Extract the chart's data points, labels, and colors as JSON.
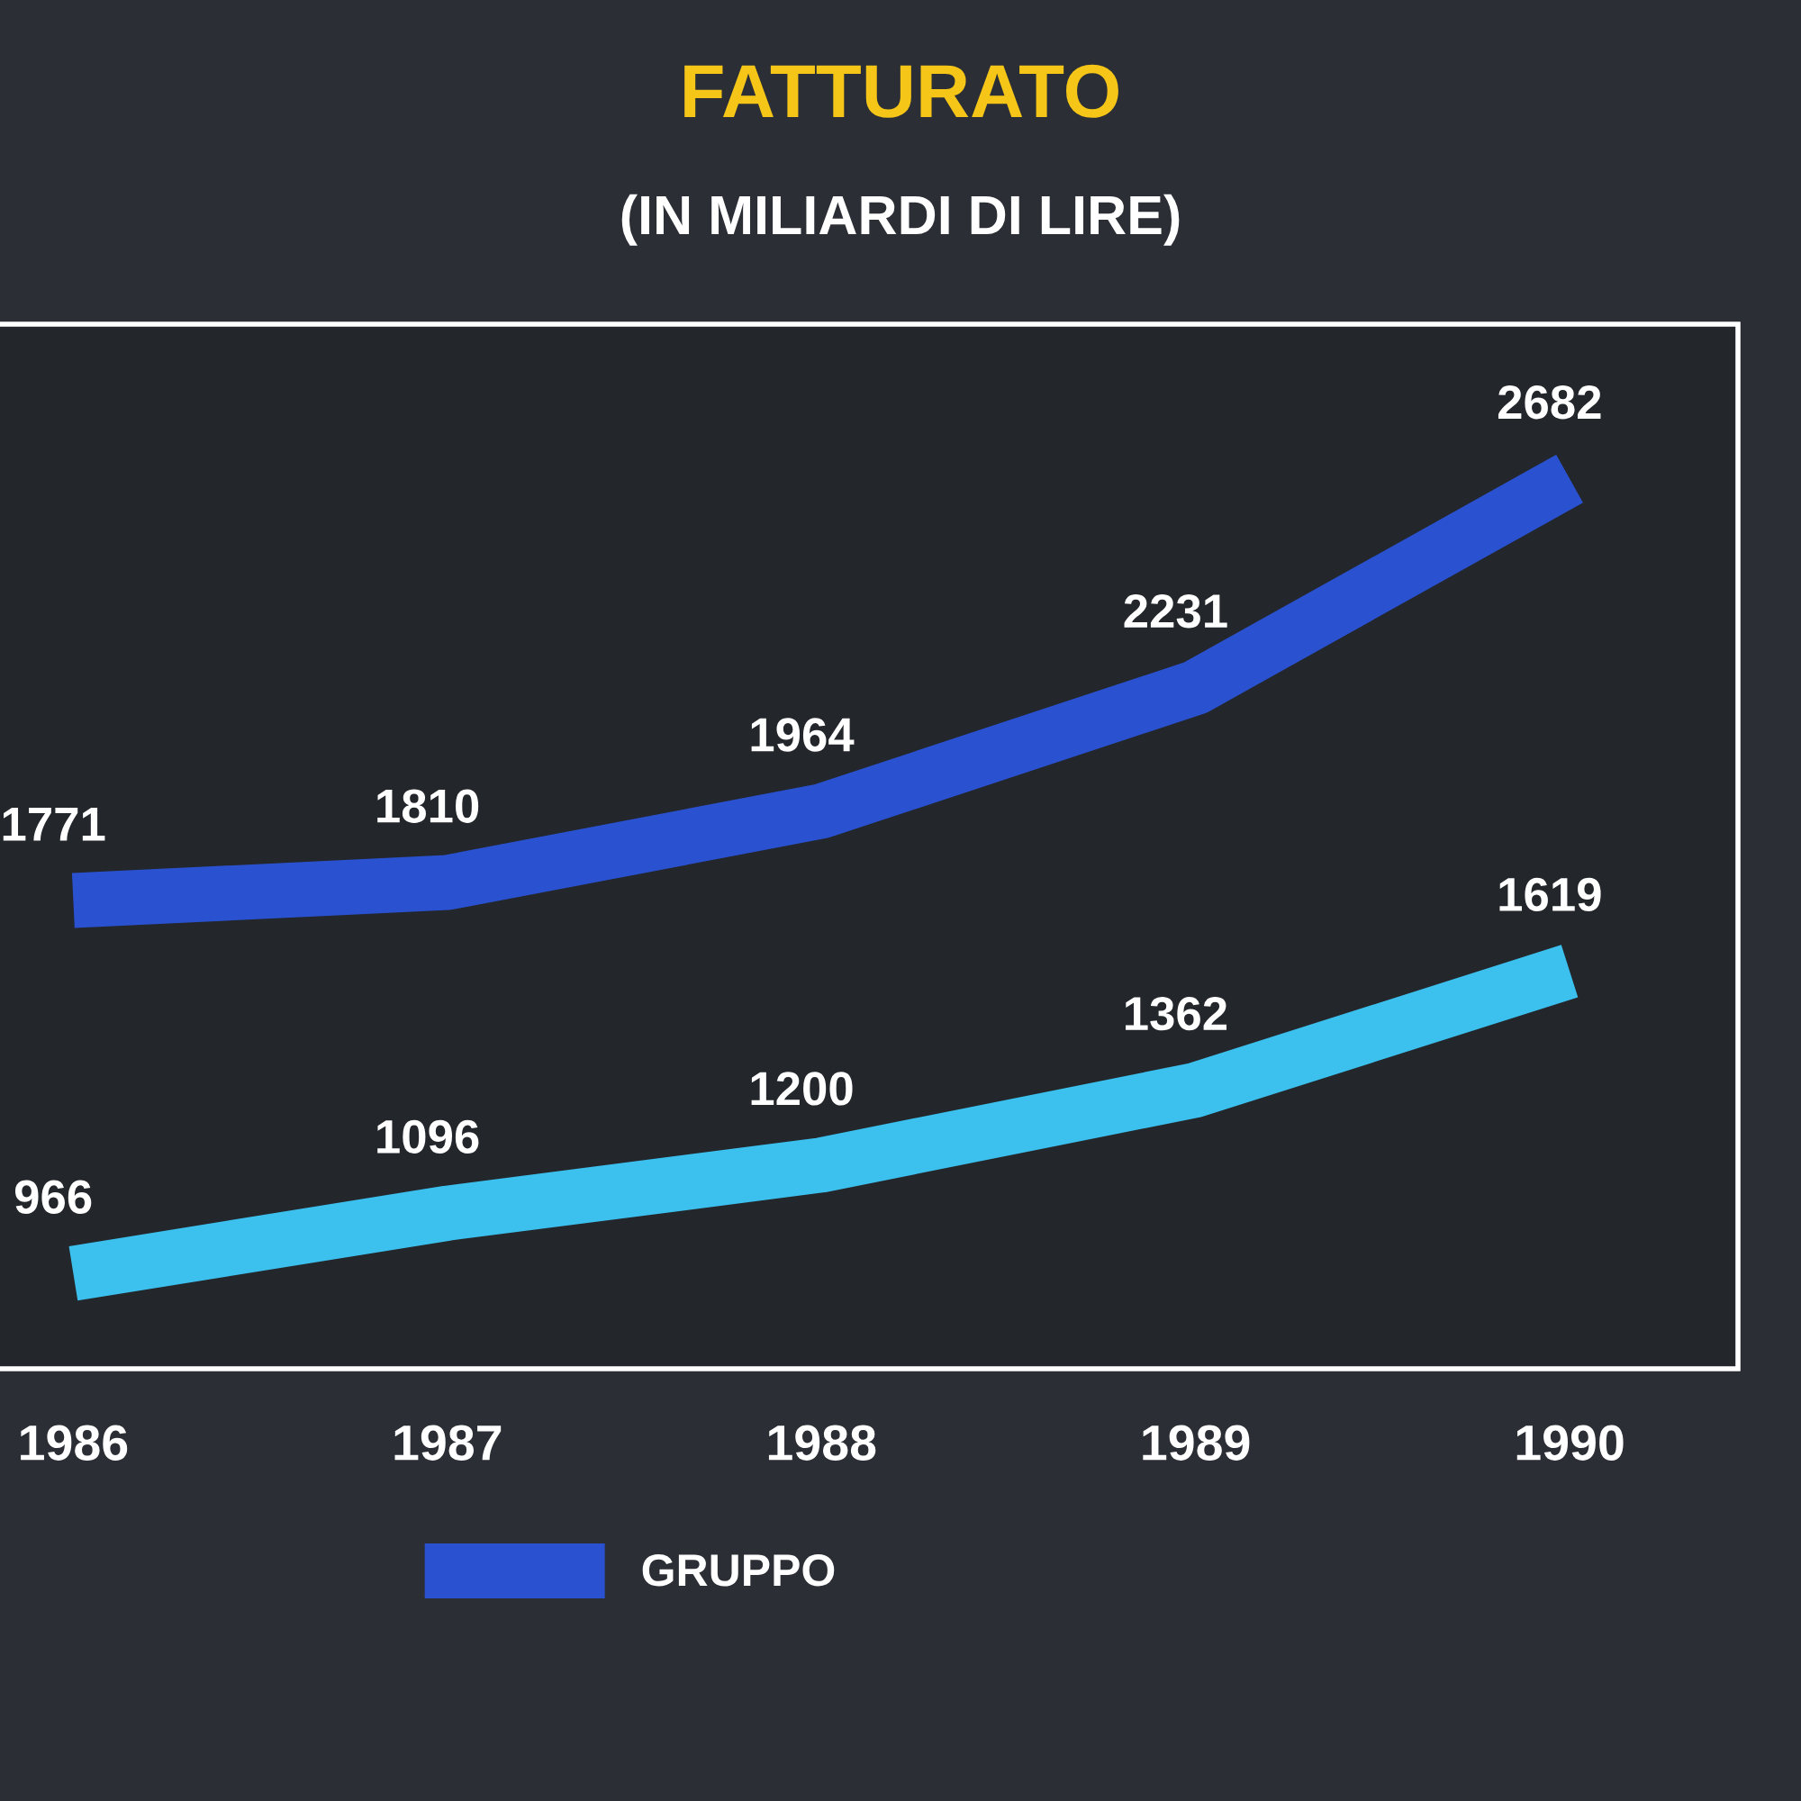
{
  "chart_data": {
    "type": "line",
    "title": "FATTURATO",
    "subtitle": "(IN MILIARDI DI LIRE)",
    "categories": [
      "1986",
      "1987",
      "1988",
      "1989",
      "1990"
    ],
    "series": [
      {
        "name": "GRUPPO",
        "color": "#2a52d0",
        "values": [
          1771,
          1810,
          1964,
          2231,
          2682
        ]
      },
      {
        "color": "#3cc0ee",
        "values": [
          966,
          1096,
          1200,
          1362,
          1619
        ]
      }
    ],
    "data_labels": true,
    "tick_labels": "x",
    "grid": false,
    "legend": "bottom",
    "marker": "none",
    "line_style": "solid"
  }
}
